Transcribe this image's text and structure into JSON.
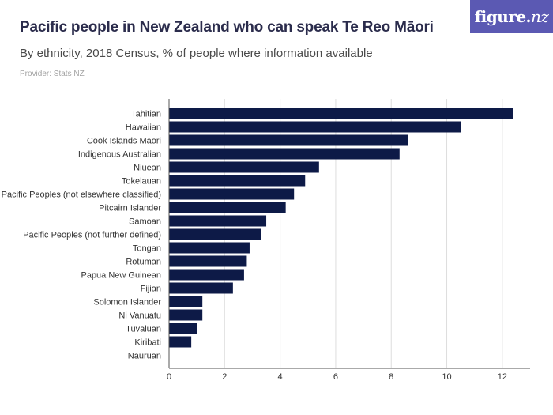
{
  "header": {
    "title": "Pacific people in New Zealand who can speak Te Reo Māori",
    "subtitle": "By ethnicity, 2018 Census, % of people where information available",
    "provider": "Provider: Stats NZ",
    "brand_name": "figure.",
    "brand_tld": "nz"
  },
  "colors": {
    "bar": "#0d1a47",
    "grid": "#dddddd",
    "axis": "#555555",
    "brand_bg": "#5b59b3"
  },
  "chart_data": {
    "type": "bar",
    "orientation": "horizontal",
    "categories": [
      "Tahitian",
      "Hawaiian",
      "Cook Islands Māori",
      "Indigenous Australian",
      "Niuean",
      "Tokelauan",
      "Pacific Peoples (not elsewhere classified)",
      "Pitcairn Islander",
      "Samoan",
      "Pacific Peoples (not further defined)",
      "Tongan",
      "Rotuman",
      "Papua New Guinean",
      "Fijian",
      "Solomon Islander",
      "Ni Vanuatu",
      "Tuvaluan",
      "Kiribati",
      "Nauruan"
    ],
    "values": [
      12.4,
      10.5,
      8.6,
      8.3,
      5.4,
      4.9,
      4.5,
      4.2,
      3.5,
      3.3,
      2.9,
      2.8,
      2.7,
      2.3,
      1.2,
      1.2,
      1.0,
      0.8,
      0
    ],
    "xlim": [
      0,
      13
    ],
    "xticks": [
      0,
      2,
      4,
      6,
      8,
      10,
      12
    ],
    "grid": true,
    "legend": "none"
  }
}
